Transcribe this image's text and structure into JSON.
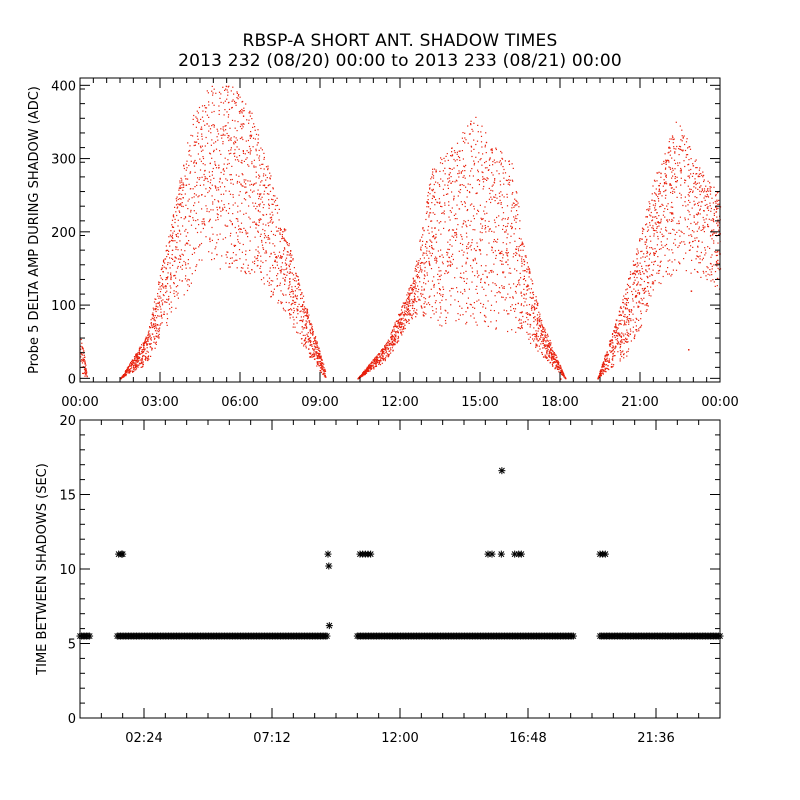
{
  "title": "RBSP-A SHORT ANT. SHADOW TIMES",
  "subtitle": "2013 232 (08/20) 00:00 to 2013 233 (08/21) 00:00",
  "chart_data": [
    {
      "type": "scatter",
      "marker": "dot",
      "color": "#e8200c",
      "xlabel": "",
      "ylabel": "Probe 5 DELTA AMP DURING SHADOW (ADC)",
      "xlim_hours": [
        0,
        24
      ],
      "ylim": [
        -5,
        410
      ],
      "x_ticks_hours": [
        0,
        3,
        6,
        9,
        12,
        15,
        18,
        21,
        24
      ],
      "x_tick_labels": [
        "00:00",
        "03:00",
        "06:00",
        "09:00",
        "12:00",
        "15:00",
        "18:00",
        "21:00",
        "00:00"
      ],
      "y_ticks": [
        0,
        100,
        200,
        300,
        400
      ],
      "y_tick_labels": [
        "0",
        "100",
        "200",
        "300",
        "400"
      ],
      "shadow_passes": [
        {
          "start_h": 0.0,
          "end_h": 0.25,
          "upper_envelope": [
            [
              0.0,
              60
            ],
            [
              0.12,
              40
            ],
            [
              0.25,
              5
            ]
          ],
          "lower_envelope": [
            [
              0.0,
              10
            ],
            [
              0.25,
              0
            ]
          ]
        },
        {
          "start_h": 1.5,
          "end_h": 9.2,
          "upper_envelope": [
            [
              1.5,
              0
            ],
            [
              2.5,
              60
            ],
            [
              3.5,
              230
            ],
            [
              4.2,
              360
            ],
            [
              4.8,
              400
            ],
            [
              5.8,
              400
            ],
            [
              6.5,
              360
            ],
            [
              7.5,
              230
            ],
            [
              8.3,
              120
            ],
            [
              8.8,
              60
            ],
            [
              9.2,
              10
            ]
          ],
          "lower_envelope": [
            [
              1.5,
              0
            ],
            [
              2.5,
              20
            ],
            [
              3.5,
              90
            ],
            [
              4.5,
              145
            ],
            [
              5.5,
              150
            ],
            [
              6.5,
              140
            ],
            [
              7.5,
              95
            ],
            [
              8.5,
              35
            ],
            [
              9.2,
              0
            ]
          ]
        },
        {
          "start_h": 10.4,
          "end_h": 18.2,
          "upper_envelope": [
            [
              10.4,
              0
            ],
            [
              11.5,
              50
            ],
            [
              12.5,
              140
            ],
            [
              13.2,
              290
            ],
            [
              14.2,
              330
            ],
            [
              14.8,
              360
            ],
            [
              15.5,
              320
            ],
            [
              16.2,
              300
            ],
            [
              16.7,
              170
            ],
            [
              17.3,
              80
            ],
            [
              18.2,
              0
            ]
          ],
          "lower_envelope": [
            [
              10.4,
              0
            ],
            [
              11.5,
              25
            ],
            [
              12.5,
              85
            ],
            [
              13.5,
              70
            ],
            [
              14.5,
              70
            ],
            [
              15.5,
              65
            ],
            [
              16.5,
              60
            ],
            [
              17.3,
              30
            ],
            [
              18.2,
              0
            ]
          ]
        },
        {
          "start_h": 19.4,
          "end_h": 24.0,
          "upper_envelope": [
            [
              19.4,
              0
            ],
            [
              20.5,
              130
            ],
            [
              21.5,
              270
            ],
            [
              22.4,
              360
            ],
            [
              23.2,
              290
            ],
            [
              24.0,
              250
            ]
          ],
          "lower_envelope": [
            [
              19.4,
              0
            ],
            [
              20.5,
              30
            ],
            [
              21.5,
              110
            ],
            [
              22.4,
              150
            ],
            [
              23.2,
              140
            ],
            [
              24.0,
              120
            ]
          ]
        }
      ],
      "outliers": [
        [
          8.6,
          30
        ],
        [
          18.0,
          0
        ],
        [
          22.8,
          40
        ],
        [
          22.9,
          120
        ]
      ]
    },
    {
      "type": "scatter",
      "marker": "asterisk",
      "color": "#000000",
      "xlabel": "",
      "ylabel": "TIME BETWEEN SHADOWS (SEC)",
      "xlim_hours": [
        0,
        24
      ],
      "ylim": [
        0,
        20
      ],
      "x_ticks_hours": [
        2.4,
        7.2,
        12.0,
        16.8,
        21.6
      ],
      "x_tick_labels": [
        "02:24",
        "07:12",
        "12:00",
        "16:48",
        "21:36"
      ],
      "y_ticks": [
        0,
        5,
        10,
        15,
        20
      ],
      "y_tick_labels": [
        "0",
        "5",
        "10",
        "15",
        "20"
      ],
      "baseline_value": 5.5,
      "baseline_segments_hours": [
        [
          0.0,
          0.4
        ],
        [
          1.4,
          9.3
        ],
        [
          10.4,
          18.5
        ],
        [
          19.5,
          24.0
        ]
      ],
      "points": [
        [
          1.45,
          11
        ],
        [
          1.55,
          11
        ],
        [
          1.6,
          11
        ],
        [
          9.3,
          11
        ],
        [
          9.33,
          10.2
        ],
        [
          9.35,
          6.2
        ],
        [
          10.5,
          11
        ],
        [
          10.6,
          11
        ],
        [
          10.7,
          11
        ],
        [
          10.8,
          11
        ],
        [
          10.9,
          11
        ],
        [
          15.3,
          11
        ],
        [
          15.45,
          11
        ],
        [
          15.8,
          11
        ],
        [
          15.82,
          16.6
        ],
        [
          16.3,
          11
        ],
        [
          16.45,
          11
        ],
        [
          16.55,
          11
        ],
        [
          19.5,
          11
        ],
        [
          19.6,
          11
        ],
        [
          19.7,
          11
        ]
      ]
    }
  ]
}
